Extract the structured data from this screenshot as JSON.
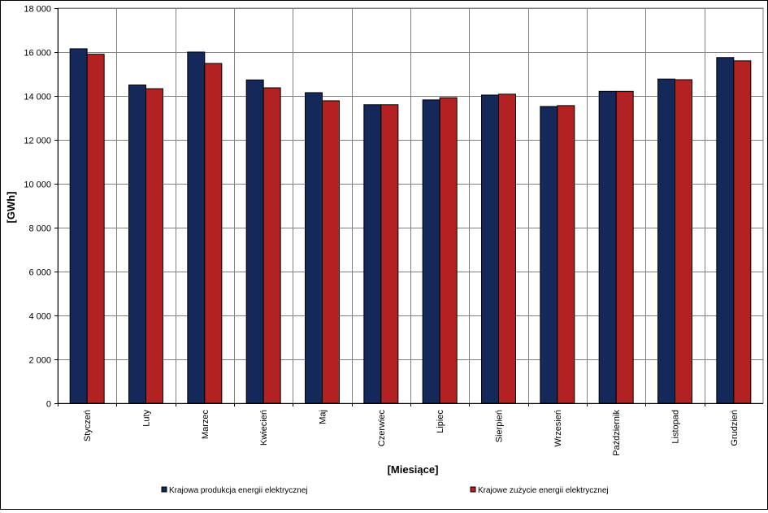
{
  "chart_data": {
    "type": "bar",
    "xlabel": "[Miesiące]",
    "ylabel": "[GWh]",
    "ylim": [
      0,
      18000
    ],
    "y_ticks": [
      0,
      2000,
      4000,
      6000,
      8000,
      10000,
      12000,
      14000,
      16000,
      18000
    ],
    "y_tick_labels": [
      "0",
      "2 000",
      "4 000",
      "6 000",
      "8 000",
      "10 000",
      "12 000",
      "14 000",
      "16 000",
      "18 000"
    ],
    "grid": true,
    "legend_position": "bottom",
    "categories": [
      "Styczeń",
      "Luty",
      "Marzec",
      "Kwiecień",
      "Maj",
      "Czerwiec",
      "Lipiec",
      "Sierpień",
      "Wrzesień",
      "Październik",
      "Listopad",
      "Grudzień"
    ],
    "series": [
      {
        "name": "Krajowa produkcja energii elektrycznej",
        "color": "#14285a",
        "values": [
          16150,
          14500,
          16000,
          14730,
          14150,
          13600,
          13820,
          14040,
          13520,
          14210,
          14770,
          15750
        ]
      },
      {
        "name": "Krajowe zużycie energii elektrycznej",
        "color": "#b22222",
        "values": [
          15900,
          14330,
          15480,
          14370,
          13780,
          13600,
          13920,
          14080,
          13560,
          14210,
          14740,
          15600
        ]
      }
    ]
  }
}
